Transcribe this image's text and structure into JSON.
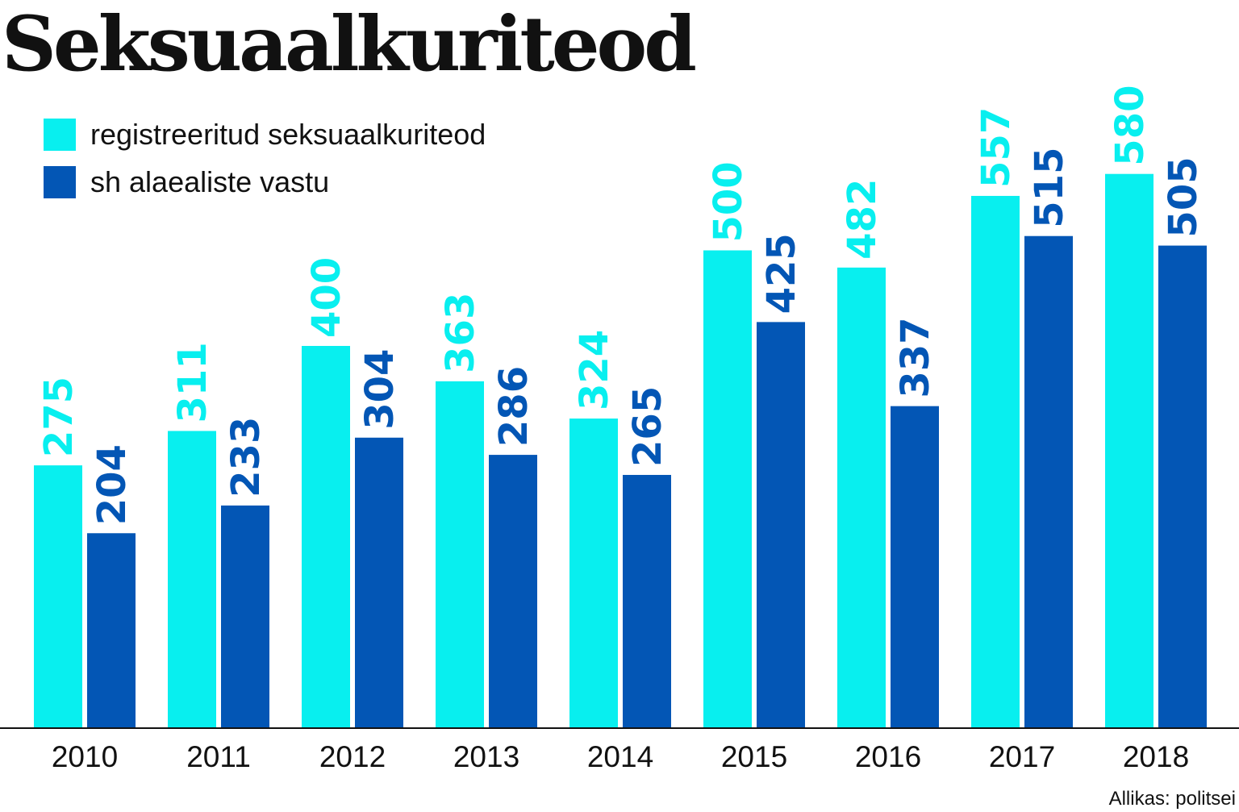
{
  "chart_data": {
    "type": "bar",
    "title": "Seksuaalkuriteod",
    "categories": [
      "2010",
      "2011",
      "2012",
      "2013",
      "2014",
      "2015",
      "2016",
      "2017",
      "2018"
    ],
    "series": [
      {
        "name": "registreeritud seksuaalkuriteod",
        "color": "#08EFEF",
        "values": [
          275,
          311,
          400,
          363,
          324,
          500,
          482,
          557,
          580
        ]
      },
      {
        "name": "sh alaealiste vastu",
        "color": "#0356B5",
        "values": [
          204,
          233,
          304,
          286,
          265,
          425,
          337,
          515,
          505
        ]
      }
    ],
    "xlabel": "",
    "ylabel": "",
    "ylim": [
      0,
      580
    ],
    "grid": false,
    "legend": "top-left",
    "source": "Allikas: politsei"
  }
}
